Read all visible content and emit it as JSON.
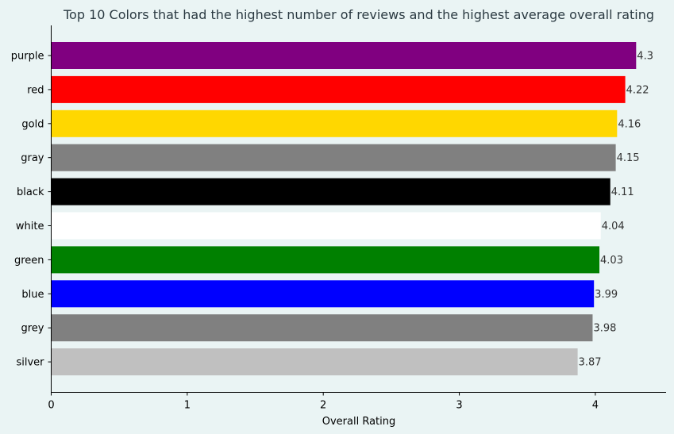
{
  "chart_data": {
    "type": "bar",
    "orientation": "horizontal",
    "title": "Top 10 Colors that had the highest number of reviews and the highest average overall rating",
    "xlabel": "Overall Rating",
    "ylabel": "",
    "xlim": [
      0,
      4.52
    ],
    "x_ticks": [
      "0",
      "1",
      "2",
      "3",
      "4"
    ],
    "grid": false,
    "background": "#eaf4f4",
    "categories": [
      "purple",
      "red",
      "gold",
      "gray",
      "black",
      "white",
      "green",
      "blue",
      "grey",
      "silver"
    ],
    "values": [
      4.3,
      4.22,
      4.16,
      4.15,
      4.11,
      4.04,
      4.03,
      3.99,
      3.98,
      3.87
    ],
    "value_labels": [
      "4.3",
      "4.22",
      "4.16",
      "4.15",
      "4.11",
      "4.04",
      "4.03",
      "3.99",
      "3.98",
      "3.87"
    ],
    "colors": [
      "#800080",
      "#ff0000",
      "#ffd700",
      "#808080",
      "#000000",
      "#ffffff",
      "#008000",
      "#0000ff",
      "#808080",
      "#c0c0c0"
    ]
  }
}
